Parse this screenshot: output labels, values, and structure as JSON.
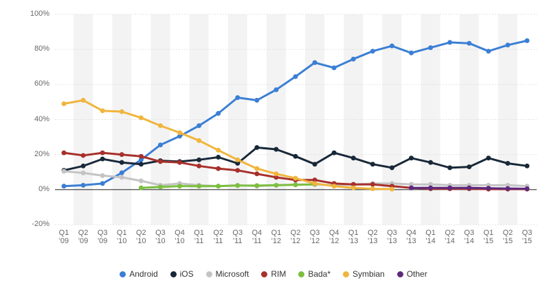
{
  "chart_data": {
    "type": "line",
    "categories": [
      "Q1 '09",
      "Q2 '09",
      "Q3 '09",
      "Q1 '10",
      "Q2 '10",
      "Q3 '10",
      "Q4 '10",
      "Q1 '11",
      "Q2 '11",
      "Q3 '11",
      "Q4 '11",
      "Q1 '12",
      "Q2 '12",
      "Q3 '12",
      "Q4 '12",
      "Q1 '13",
      "Q2 '13",
      "Q3 '13",
      "Q4 '13",
      "Q1 '14",
      "Q2 '14",
      "Q3 '14",
      "Q1 '15",
      "Q2 '15",
      "Q3 '15"
    ],
    "series": [
      {
        "name": "Android",
        "color": "#3b7fd4",
        "values": [
          2,
          2.5,
          3.5,
          9.6,
          17,
          25.5,
          30.5,
          36.5,
          43.5,
          52.5,
          51,
          57,
          64.5,
          72.5,
          69.5,
          74.5,
          79,
          82,
          78,
          81,
          84,
          83.5,
          79,
          82.5,
          85
        ]
      },
      {
        "name": "iOS",
        "color": "#182838",
        "values": [
          11,
          13.5,
          17.5,
          15.5,
          14.5,
          16.5,
          16,
          17,
          18.5,
          15,
          24,
          23,
          19,
          14.5,
          21,
          18,
          14.5,
          12.5,
          18,
          15.5,
          12.5,
          13,
          18,
          15,
          13.5
        ]
      },
      {
        "name": "Microsoft",
        "color": "#c4c4c4",
        "values": [
          10.5,
          9.5,
          8,
          7,
          5,
          2.5,
          3.5,
          2.5,
          2,
          2.5,
          2,
          2.5,
          3,
          3,
          2.5,
          3,
          3.5,
          3.5,
          3,
          3,
          2.5,
          2.5,
          2.5,
          2.5,
          2
        ]
      },
      {
        "name": "RIM",
        "color": "#a8302b",
        "values": [
          21,
          19.5,
          21,
          20,
          19,
          16,
          15.5,
          13.5,
          12,
          11,
          9,
          7,
          5.5,
          5.5,
          3.5,
          3,
          3,
          2,
          1,
          0.5,
          0.5,
          0.5,
          0.3,
          0.3,
          0.3
        ]
      },
      {
        "name": "Bada*",
        "color": "#7cbf3f",
        "values": [
          null,
          null,
          null,
          null,
          1,
          1.5,
          2,
          2,
          2,
          2.3,
          2.3,
          2.5,
          2.7,
          3,
          null,
          null,
          null,
          null,
          null,
          null,
          null,
          null,
          null,
          null,
          null
        ]
      },
      {
        "name": "Symbian",
        "color": "#f0b53c",
        "values": [
          49,
          51,
          45,
          44.5,
          41,
          36.5,
          32.5,
          28,
          22.5,
          17,
          12,
          9,
          6.5,
          3.5,
          2,
          1,
          0.5,
          0.3,
          null,
          null,
          null,
          null,
          null,
          null,
          null
        ]
      },
      {
        "name": "Other",
        "color": "#5e2a7e",
        "values": [
          null,
          null,
          null,
          null,
          null,
          null,
          null,
          null,
          null,
          null,
          null,
          null,
          null,
          null,
          null,
          null,
          null,
          null,
          1,
          1,
          1,
          1,
          0.8,
          0.6,
          0.5
        ]
      }
    ],
    "ylim": [
      -20,
      100
    ],
    "yticks": [
      {
        "value": -20,
        "label": "-20%"
      },
      {
        "value": 0,
        "label": "0%"
      },
      {
        "value": 20,
        "label": "20%"
      },
      {
        "value": 40,
        "label": "40%"
      },
      {
        "value": 60,
        "label": "60%"
      },
      {
        "value": 80,
        "label": "80%"
      },
      {
        "value": 100,
        "label": "100%"
      }
    ],
    "grid": true,
    "legend": "bottom"
  }
}
